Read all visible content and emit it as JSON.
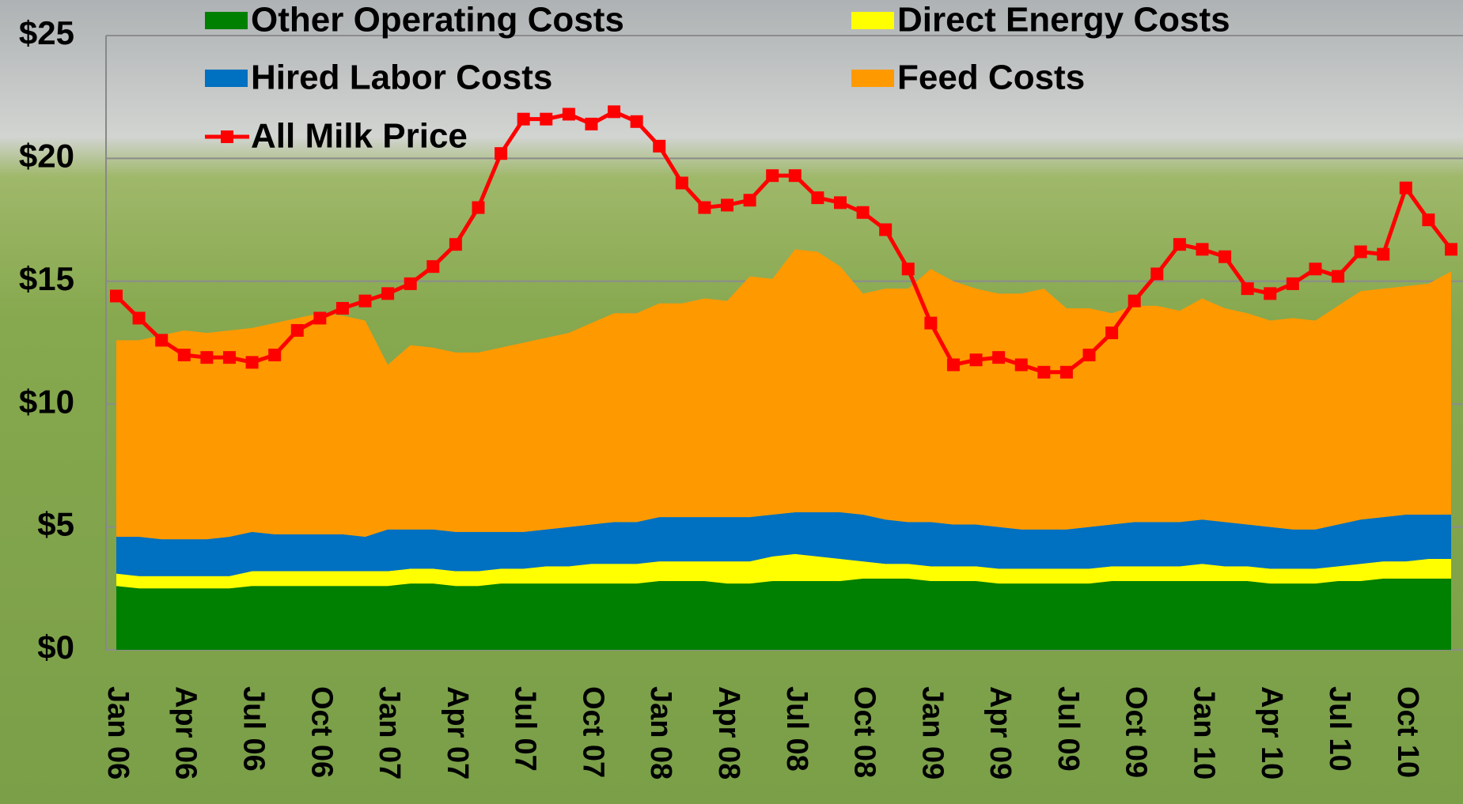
{
  "chart_data": {
    "type": "area",
    "categories": [
      "Jan 06",
      null,
      null,
      "Apr 06",
      null,
      null,
      "Jul 06",
      null,
      null,
      "Oct 06",
      null,
      null,
      "Jan 07",
      null,
      null,
      "Apr 07",
      null,
      null,
      "Jul 07",
      null,
      null,
      "Oct 07",
      null,
      null,
      "Jan 08",
      null,
      null,
      "Apr 08",
      null,
      null,
      "Jul 08",
      null,
      null,
      "Oct 08",
      null,
      null,
      "Jan 09",
      null,
      null,
      "Apr 09",
      null,
      null,
      "Jul 09",
      null,
      null,
      "Oct 09",
      null,
      null,
      "Jan 10",
      null,
      null,
      "Apr 10",
      null,
      null,
      "Jul 10",
      null,
      null,
      "Oct 10",
      null,
      null
    ],
    "ylim": [
      0,
      25
    ],
    "yticks": [
      {
        "value": 0,
        "label": "$0"
      },
      {
        "value": 5,
        "label": "$5"
      },
      {
        "value": 10,
        "label": "$10"
      },
      {
        "value": 15,
        "label": "$15"
      },
      {
        "value": 20,
        "label": "$20"
      },
      {
        "value": 25,
        "label": "$25"
      }
    ],
    "grid": true,
    "stacked": true,
    "series": [
      {
        "name": "Other Operating Costs",
        "type": "area",
        "color": "#008000",
        "values": [
          2.6,
          2.5,
          2.5,
          2.5,
          2.5,
          2.5,
          2.6,
          2.6,
          2.6,
          2.6,
          2.6,
          2.6,
          2.6,
          2.7,
          2.7,
          2.6,
          2.6,
          2.7,
          2.7,
          2.7,
          2.7,
          2.7,
          2.7,
          2.7,
          2.8,
          2.8,
          2.8,
          2.7,
          2.7,
          2.8,
          2.8,
          2.8,
          2.8,
          2.9,
          2.9,
          2.9,
          2.8,
          2.8,
          2.8,
          2.7,
          2.7,
          2.7,
          2.7,
          2.7,
          2.8,
          2.8,
          2.8,
          2.8,
          2.8,
          2.8,
          2.8,
          2.7,
          2.7,
          2.7,
          2.8,
          2.8,
          2.9,
          2.9,
          2.9,
          2.9
        ]
      },
      {
        "name": "Direct Energy Costs",
        "type": "area",
        "color": "#ffff00",
        "values": [
          0.5,
          0.5,
          0.5,
          0.5,
          0.5,
          0.5,
          0.6,
          0.6,
          0.6,
          0.6,
          0.6,
          0.6,
          0.6,
          0.6,
          0.6,
          0.6,
          0.6,
          0.6,
          0.6,
          0.7,
          0.7,
          0.8,
          0.8,
          0.8,
          0.8,
          0.8,
          0.8,
          0.9,
          0.9,
          1.0,
          1.1,
          1.0,
          0.9,
          0.7,
          0.6,
          0.6,
          0.6,
          0.6,
          0.6,
          0.6,
          0.6,
          0.6,
          0.6,
          0.6,
          0.6,
          0.6,
          0.6,
          0.6,
          0.7,
          0.6,
          0.6,
          0.6,
          0.6,
          0.6,
          0.6,
          0.7,
          0.7,
          0.7,
          0.8,
          0.8
        ]
      },
      {
        "name": "Hired Labor Costs",
        "type": "area",
        "color": "#0070c0",
        "values": [
          1.5,
          1.6,
          1.5,
          1.5,
          1.5,
          1.6,
          1.6,
          1.5,
          1.5,
          1.5,
          1.5,
          1.4,
          1.7,
          1.6,
          1.6,
          1.6,
          1.6,
          1.5,
          1.5,
          1.5,
          1.6,
          1.6,
          1.7,
          1.7,
          1.8,
          1.8,
          1.8,
          1.8,
          1.8,
          1.7,
          1.7,
          1.8,
          1.9,
          1.9,
          1.8,
          1.7,
          1.8,
          1.7,
          1.7,
          1.7,
          1.6,
          1.6,
          1.6,
          1.7,
          1.7,
          1.8,
          1.8,
          1.8,
          1.8,
          1.8,
          1.7,
          1.7,
          1.6,
          1.6,
          1.7,
          1.8,
          1.8,
          1.9,
          1.8,
          1.8
        ]
      },
      {
        "name": "Feed Costs",
        "type": "area",
        "color": "#ff9900",
        "values": [
          8.0,
          8.0,
          8.3,
          8.5,
          8.4,
          8.4,
          8.3,
          8.6,
          8.8,
          9.0,
          8.9,
          8.8,
          6.7,
          7.5,
          7.4,
          7.3,
          7.3,
          7.5,
          7.7,
          7.8,
          7.9,
          8.2,
          8.5,
          8.5,
          8.7,
          8.7,
          8.9,
          8.8,
          9.8,
          9.6,
          10.7,
          10.6,
          10.0,
          9.0,
          9.4,
          9.5,
          10.3,
          9.9,
          9.6,
          9.5,
          9.6,
          9.8,
          9.0,
          8.9,
          8.6,
          8.8,
          8.8,
          8.6,
          9.0,
          8.7,
          8.6,
          8.4,
          8.6,
          8.5,
          8.9,
          9.3,
          9.3,
          9.3,
          9.4,
          9.9
        ]
      },
      {
        "name": "All Milk Price",
        "type": "line",
        "color": "#ff0000",
        "values": [
          14.4,
          13.5,
          12.6,
          12.0,
          11.9,
          11.9,
          11.7,
          12.0,
          13.0,
          13.5,
          13.9,
          14.2,
          14.5,
          14.9,
          15.6,
          16.5,
          18.0,
          20.2,
          21.6,
          21.6,
          21.8,
          21.4,
          21.9,
          21.5,
          20.5,
          19.0,
          18.0,
          18.1,
          18.3,
          19.3,
          19.3,
          18.4,
          18.2,
          17.8,
          17.1,
          15.5,
          13.3,
          11.6,
          11.8,
          11.9,
          11.6,
          11.3,
          11.3,
          12.0,
          12.9,
          14.2,
          15.3,
          16.5,
          16.3,
          16.0,
          14.7,
          14.5,
          14.9,
          15.5,
          15.2,
          16.2,
          16.1,
          18.8,
          17.5,
          16.3
        ]
      }
    ]
  }
}
